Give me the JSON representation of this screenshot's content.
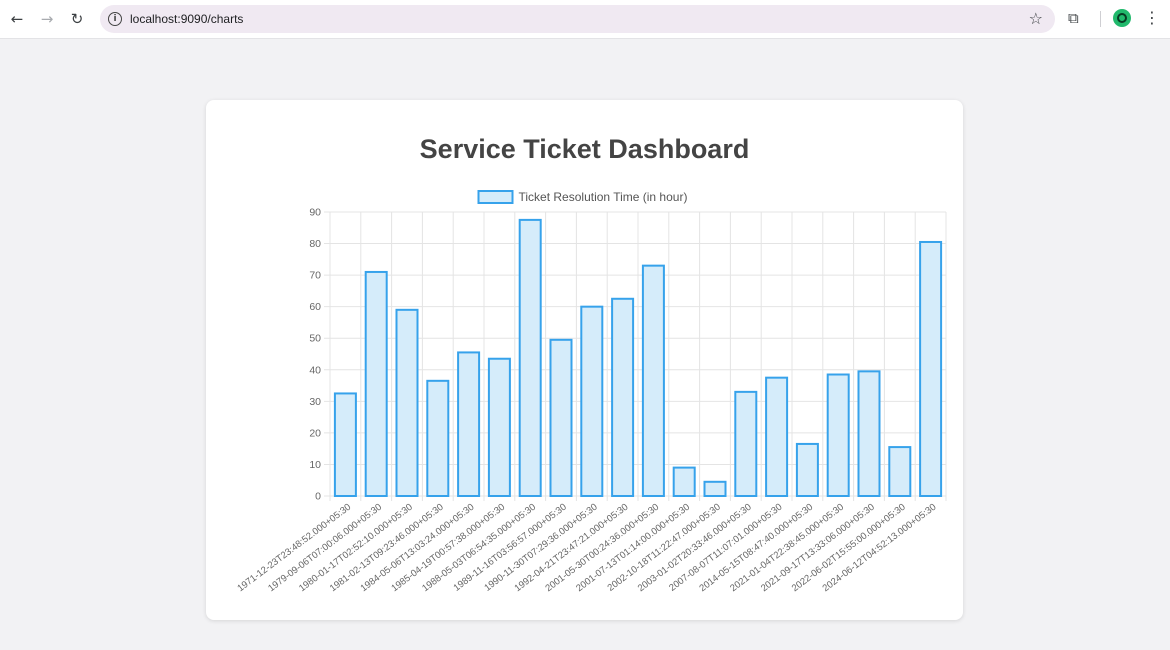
{
  "browser": {
    "url": "localhost:9090/charts",
    "back_icon": "arrow-left-icon",
    "forward_icon": "arrow-right-icon",
    "reload_icon": "reload-icon",
    "info_icon": "info-icon",
    "bookmark_icon": "star-icon",
    "extensions_icon": "puzzle-icon",
    "profile_icon": "profile-avatar-icon",
    "menu_icon": "kebab-menu-icon"
  },
  "page": {
    "title": "Service Ticket Dashboard"
  },
  "chart_data": {
    "type": "bar",
    "legend_position": "top",
    "grid": true,
    "series": [
      {
        "name": "Ticket Resolution Time (in hour)",
        "color": "#36a2eb",
        "fill": "#d5ecfa"
      }
    ],
    "categories": [
      "1971-12-23T23:48:52.000+05:30",
      "1979-09-06T07:00:06.000+05:30",
      "1980-01-17T02:52:10.000+05:30",
      "1981-02-13T09:23:46.000+05:30",
      "1984-05-06T13:03:24.000+05:30",
      "1985-04-19T00:57:38.000+05:30",
      "1988-05-03T06:54:35.000+05:30",
      "1989-11-16T03:56:57.000+05:30",
      "1990-11-30T07:29:36.000+05:30",
      "1992-04-21T23:47:21.000+05:30",
      "2001-05-30T00:24:36.000+05:30",
      "2001-07-13T01:14:00.000+05:30",
      "2002-10-18T11:22:47.000+05:30",
      "2003-01-02T20:33:46.000+05:30",
      "2007-08-07T11:07:01.000+05:30",
      "2014-05-15T08:47:40.000+05:30",
      "2021-01-04T22:38:45.000+05:30",
      "2021-09-17T13:33:06.000+05:30",
      "2022-06-02T15:55:00.000+05:30",
      "2024-06-12T04:52:13.000+05:30"
    ],
    "values": [
      32.5,
      71,
      59,
      36.5,
      45.5,
      43.5,
      87.5,
      49.5,
      60,
      62.5,
      73,
      9,
      4.5,
      33,
      37.5,
      16.5,
      38.5,
      39.5,
      15.5,
      80.5
    ],
    "ylim": [
      0,
      90
    ],
    "yticks": [
      0,
      10,
      20,
      30,
      40,
      50,
      60,
      70,
      80,
      90
    ]
  }
}
